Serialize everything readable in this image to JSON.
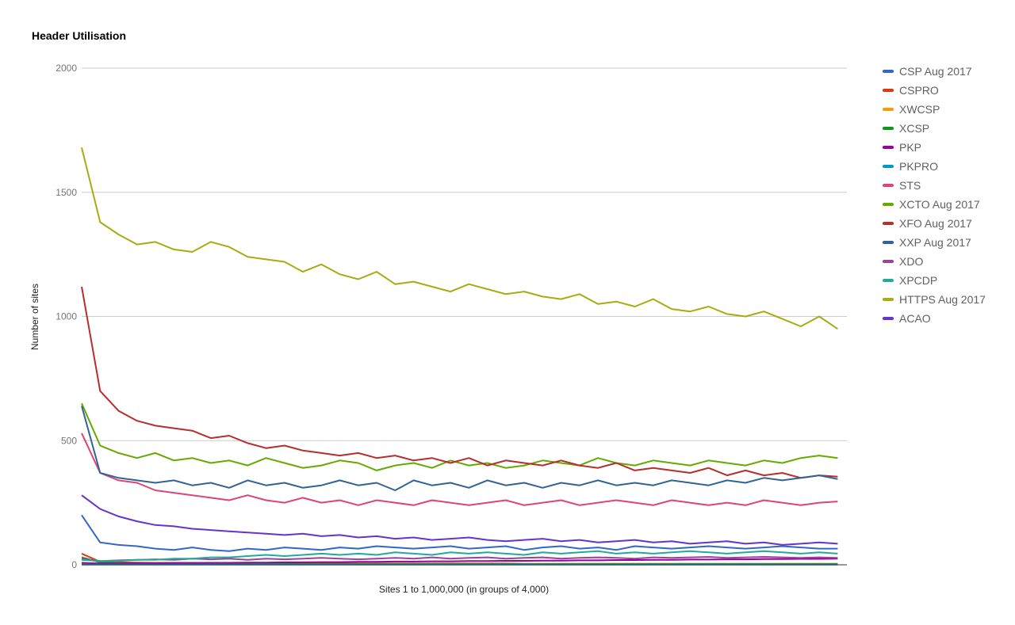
{
  "chart_data": {
    "type": "line",
    "title": "Header Utilisation",
    "xlabel": "Sites 1 to 1,000,000 (in groups of 4,000)",
    "ylabel": "Number of sites",
    "ylim": [
      0,
      2000
    ],
    "yticks": [
      0,
      500,
      1000,
      1500,
      2000
    ],
    "xlim": [
      1,
      250
    ],
    "grid": true,
    "legend_position": "right",
    "x": [
      1,
      7,
      13,
      19,
      25,
      31,
      37,
      43,
      49,
      55,
      61,
      67,
      73,
      79,
      85,
      91,
      97,
      103,
      109,
      115,
      121,
      127,
      133,
      139,
      145,
      151,
      157,
      163,
      169,
      175,
      181,
      187,
      193,
      199,
      205,
      211,
      217,
      223,
      229,
      235,
      241,
      247
    ],
    "series": [
      {
        "name": "CSP Aug 2017",
        "color": "#3366cc",
        "values": [
          200,
          90,
          80,
          75,
          65,
          60,
          70,
          60,
          55,
          65,
          60,
          70,
          65,
          60,
          70,
          65,
          75,
          70,
          65,
          70,
          75,
          65,
          70,
          75,
          60,
          70,
          75,
          65,
          70,
          60,
          75,
          70,
          65,
          70,
          75,
          70,
          65,
          70,
          75,
          70,
          65,
          65
        ]
      },
      {
        "name": "CSPRO",
        "color": "#dc3912",
        "values": [
          45,
          12,
          10,
          9,
          8,
          8,
          8,
          7,
          7,
          7,
          6,
          6,
          6,
          6,
          5,
          5,
          5,
          5,
          5,
          5,
          5,
          5,
          5,
          5,
          4,
          4,
          4,
          4,
          4,
          4,
          4,
          4,
          4,
          4,
          4,
          4,
          4,
          4,
          4,
          4,
          4,
          4
        ]
      },
      {
        "name": "XWCSP",
        "color": "#ff9900",
        "values": [
          3,
          2,
          2,
          2,
          2,
          2,
          2,
          2,
          2,
          2,
          2,
          2,
          2,
          2,
          2,
          2,
          2,
          2,
          2,
          2,
          2,
          2,
          2,
          2,
          2,
          2,
          2,
          2,
          2,
          2,
          2,
          2,
          2,
          2,
          2,
          2,
          2,
          2,
          2,
          2,
          2,
          2
        ]
      },
      {
        "name": "XCSP",
        "color": "#109618",
        "values": [
          30,
          10,
          7,
          6,
          5,
          5,
          5,
          4,
          4,
          4,
          4,
          4,
          3,
          3,
          3,
          3,
          3,
          3,
          3,
          3,
          3,
          3,
          3,
          3,
          3,
          3,
          3,
          3,
          3,
          3,
          3,
          3,
          3,
          3,
          3,
          3,
          3,
          3,
          3,
          3,
          3,
          3
        ]
      },
      {
        "name": "PKP",
        "color": "#990099",
        "values": [
          8,
          5,
          5,
          6,
          6,
          7,
          7,
          8,
          8,
          9,
          9,
          10,
          10,
          11,
          11,
          12,
          12,
          13,
          13,
          14,
          14,
          15,
          15,
          16,
          16,
          17,
          17,
          18,
          18,
          19,
          19,
          20,
          20,
          21,
          21,
          22,
          22,
          23,
          23,
          24,
          24,
          25
        ]
      },
      {
        "name": "PKPRO",
        "color": "#0099c6",
        "values": [
          1,
          1,
          1,
          1,
          1,
          1,
          1,
          1,
          1,
          1,
          1,
          1,
          1,
          1,
          1,
          1,
          1,
          1,
          1,
          1,
          1,
          1,
          1,
          1,
          1,
          1,
          1,
          1,
          1,
          1,
          1,
          1,
          1,
          1,
          1,
          1,
          1,
          1,
          1,
          1,
          1,
          1
        ]
      },
      {
        "name": "STS",
        "color": "#dd4477",
        "values": [
          530,
          370,
          340,
          330,
          300,
          290,
          280,
          270,
          260,
          280,
          260,
          250,
          270,
          250,
          260,
          240,
          260,
          250,
          240,
          260,
          250,
          240,
          250,
          260,
          240,
          250,
          260,
          240,
          250,
          260,
          250,
          240,
          260,
          250,
          240,
          250,
          240,
          260,
          250,
          240,
          250,
          255
        ]
      },
      {
        "name": "XCTO Aug 2017",
        "color": "#66aa00",
        "values": [
          650,
          480,
          450,
          430,
          450,
          420,
          430,
          410,
          420,
          400,
          430,
          410,
          390,
          400,
          420,
          410,
          380,
          400,
          410,
          390,
          420,
          400,
          410,
          390,
          400,
          420,
          410,
          400,
          430,
          410,
          400,
          420,
          410,
          400,
          420,
          410,
          400,
          420,
          410,
          430,
          440,
          430
        ]
      },
      {
        "name": "XFO Aug 2017",
        "color": "#b82e2e",
        "values": [
          1120,
          700,
          620,
          580,
          560,
          550,
          540,
          510,
          520,
          490,
          470,
          480,
          460,
          450,
          440,
          450,
          430,
          440,
          420,
          430,
          410,
          430,
          400,
          420,
          410,
          400,
          420,
          400,
          390,
          410,
          380,
          390,
          380,
          370,
          390,
          360,
          380,
          360,
          370,
          350,
          360,
          355
        ]
      },
      {
        "name": "XXP Aug 2017",
        "color": "#316395",
        "values": [
          640,
          370,
          350,
          340,
          330,
          340,
          320,
          330,
          310,
          340,
          320,
          330,
          310,
          320,
          340,
          320,
          330,
          300,
          340,
          320,
          330,
          310,
          340,
          320,
          330,
          310,
          330,
          320,
          340,
          320,
          330,
          320,
          340,
          330,
          320,
          340,
          330,
          350,
          340,
          350,
          360,
          345
        ]
      },
      {
        "name": "XDO",
        "color": "#994499",
        "values": [
          25,
          15,
          18,
          20,
          22,
          20,
          25,
          22,
          25,
          20,
          25,
          22,
          25,
          28,
          25,
          22,
          25,
          28,
          25,
          30,
          25,
          28,
          30,
          25,
          28,
          30,
          25,
          28,
          30,
          28,
          25,
          30,
          28,
          30,
          32,
          28,
          30,
          32,
          30,
          28,
          30,
          28
        ]
      },
      {
        "name": "XPCDP",
        "color": "#22aa99",
        "values": [
          20,
          15,
          15,
          20,
          20,
          25,
          25,
          30,
          30,
          35,
          40,
          35,
          40,
          45,
          40,
          45,
          40,
          50,
          45,
          40,
          50,
          45,
          50,
          45,
          40,
          50,
          45,
          50,
          55,
          45,
          50,
          45,
          50,
          55,
          50,
          45,
          50,
          55,
          50,
          45,
          50,
          45
        ]
      },
      {
        "name": "HTTPS Aug 2017",
        "color": "#aaaa11",
        "values": [
          1680,
          1380,
          1330,
          1290,
          1300,
          1270,
          1260,
          1300,
          1280,
          1240,
          1230,
          1220,
          1180,
          1210,
          1170,
          1150,
          1180,
          1130,
          1140,
          1120,
          1100,
          1130,
          1110,
          1090,
          1100,
          1080,
          1070,
          1090,
          1050,
          1060,
          1040,
          1070,
          1030,
          1020,
          1040,
          1010,
          1000,
          1020,
          990,
          960,
          1000,
          950
        ]
      },
      {
        "name": "ACAO",
        "color": "#6633cc",
        "values": [
          280,
          225,
          195,
          175,
          160,
          155,
          145,
          140,
          135,
          130,
          125,
          120,
          125,
          115,
          120,
          110,
          115,
          105,
          110,
          100,
          105,
          110,
          100,
          95,
          100,
          105,
          95,
          100,
          90,
          95,
          100,
          90,
          95,
          85,
          90,
          95,
          85,
          90,
          80,
          85,
          90,
          85
        ]
      }
    ]
  }
}
